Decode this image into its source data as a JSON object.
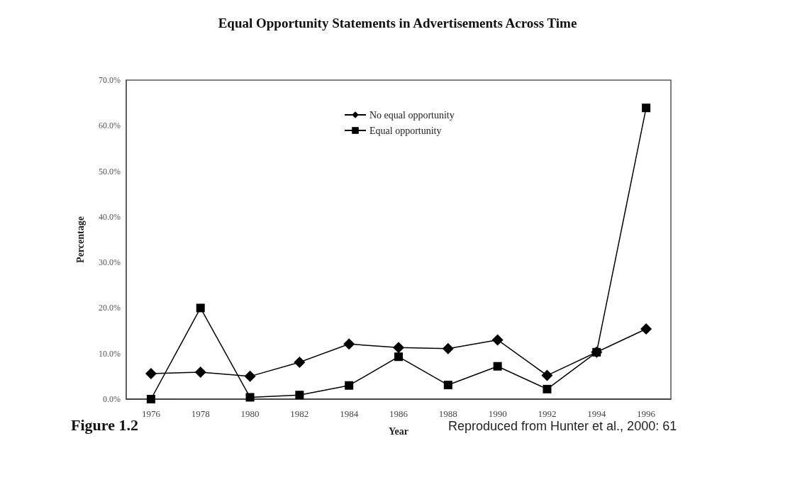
{
  "chart_data": {
    "type": "line",
    "title": "Equal Opportunity Statements in Advertisements Across Time",
    "xlabel": "Year",
    "ylabel": "Percentage",
    "categories": [
      "1976",
      "1978",
      "1980",
      "1982",
      "1984",
      "1986",
      "1988",
      "1990",
      "1992",
      "1994",
      "1996"
    ],
    "series": [
      {
        "name": "No equal opportunity",
        "color": "#000000",
        "marker": "diamond",
        "values": [
          5.6,
          5.9,
          5.0,
          8.1,
          12.1,
          11.3,
          11.1,
          13.0,
          5.2,
          10.3,
          15.4
        ]
      },
      {
        "name": "Equal opportunity",
        "color": "#000000",
        "marker": "square",
        "values": [
          0,
          20.0,
          0.4,
          0.9,
          3.0,
          9.3,
          3.1,
          7.2,
          2.2,
          10.3,
          63.9
        ]
      }
    ],
    "ylim": [
      0,
      70
    ],
    "yticks": [
      {
        "value": 0,
        "label": "0.0%"
      },
      {
        "value": 10,
        "label": "10.0%"
      },
      {
        "value": 20,
        "label": "20.0%"
      },
      {
        "value": 30,
        "label": "30.0%"
      },
      {
        "value": 40,
        "label": "40.0%"
      },
      {
        "value": 50,
        "label": "50.0%"
      },
      {
        "value": 60,
        "label": "60.0%"
      },
      {
        "value": 70,
        "label": "70.0%"
      }
    ],
    "grid": false,
    "legend": "top",
    "line_style": "solid",
    "annotations": [
      "Figure 1.2",
      "Reproduced from Hunter et al., 2000: 61"
    ]
  }
}
